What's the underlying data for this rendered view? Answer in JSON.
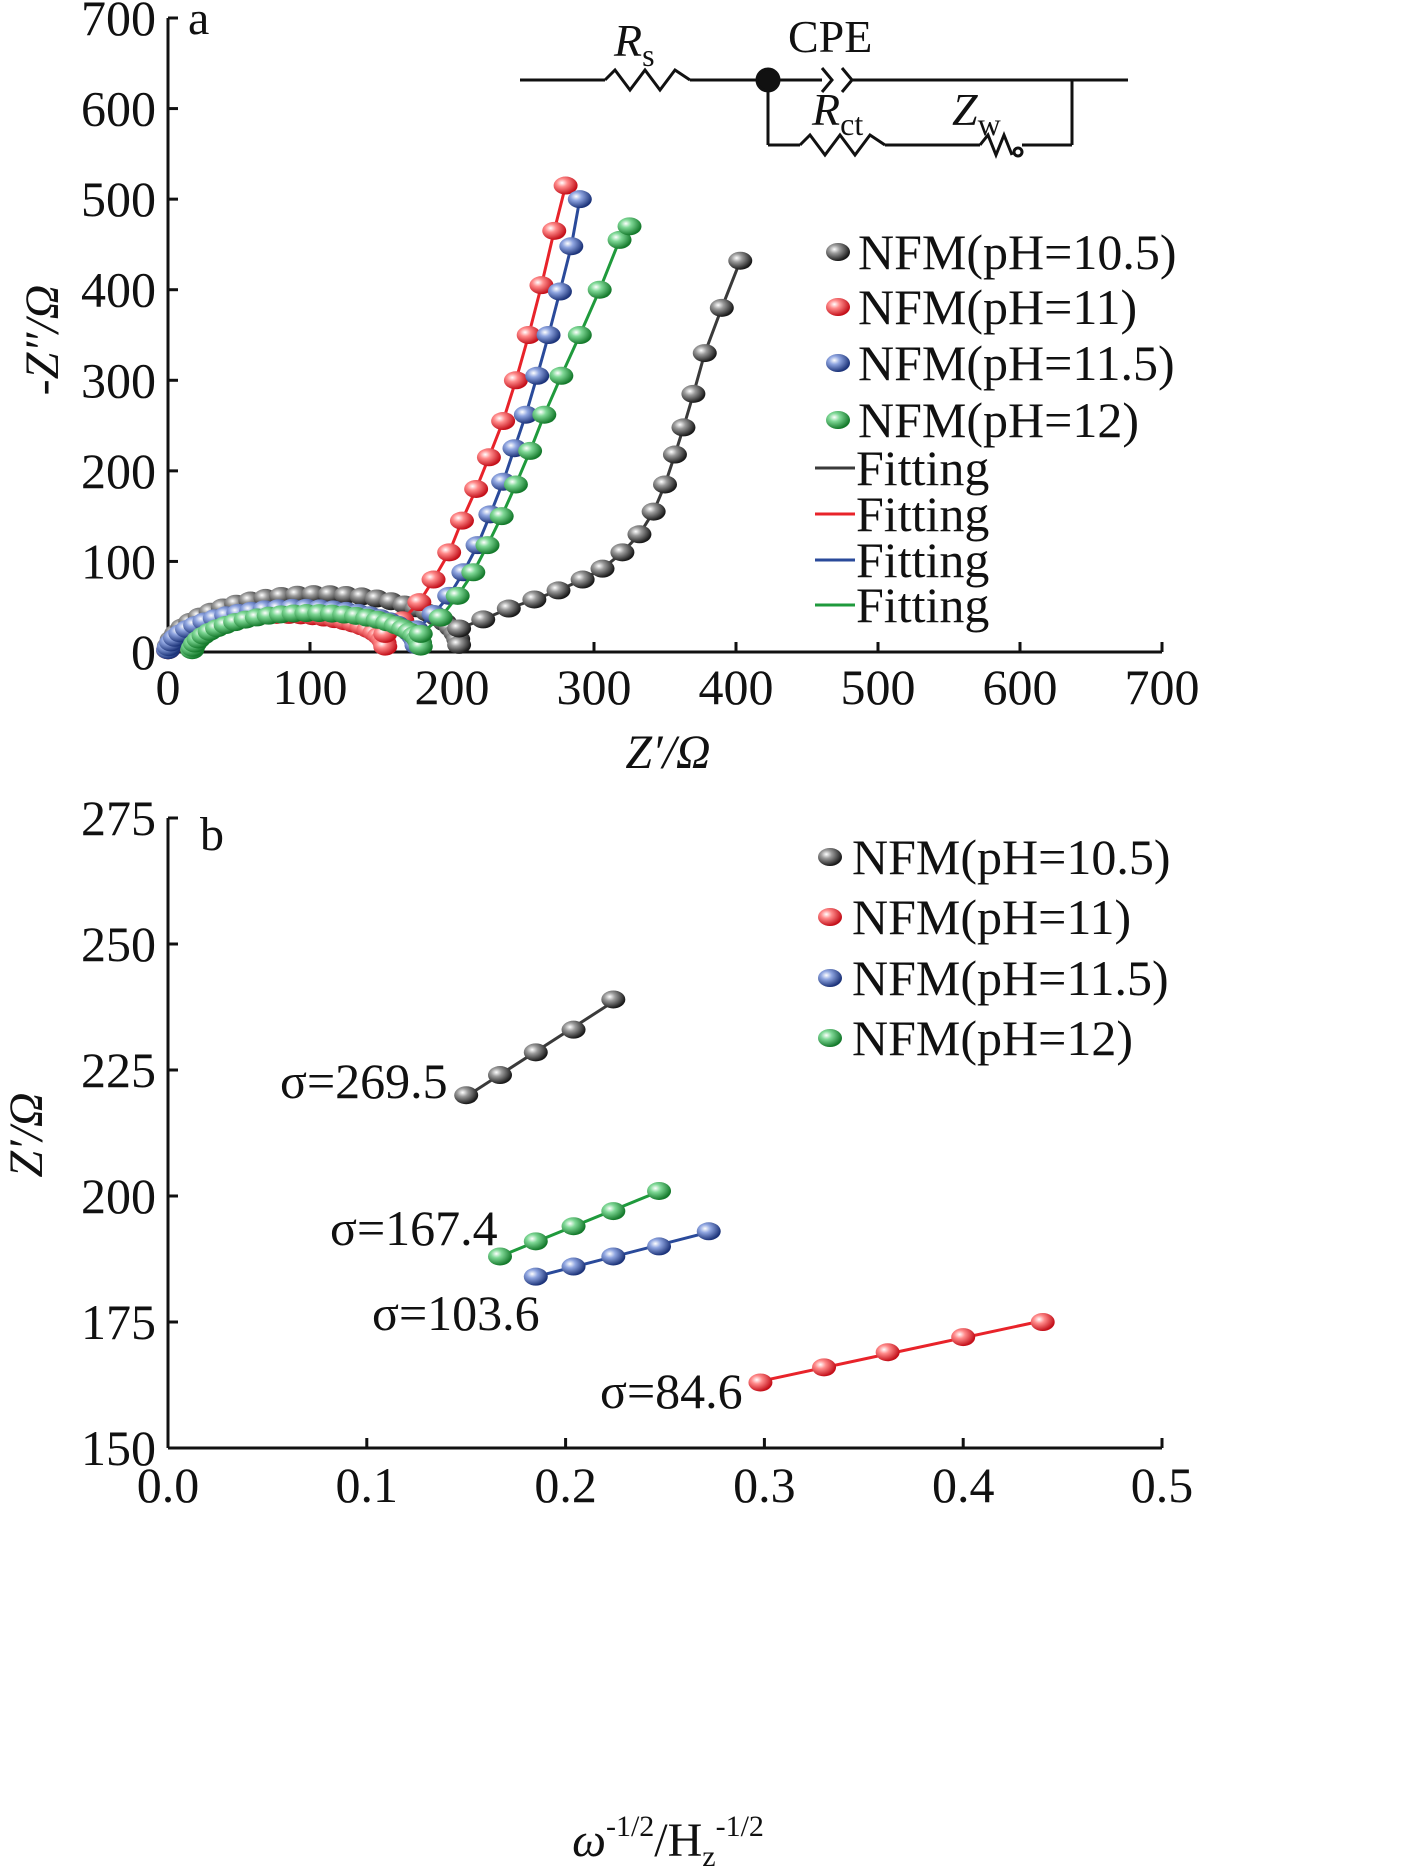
{
  "colors": {
    "pH_10_5": "#3a3a3a",
    "pH_11": "#e8232a",
    "pH_11_5": "#2a4a9a",
    "pH_12": "#1f9a3c"
  },
  "chart_data": [
    {
      "panel": "a",
      "type": "scatter",
      "xlabel": "Z′/Ω",
      "ylabel": "-Z″/Ω",
      "xlim": [
        0,
        700
      ],
      "ylim": [
        0,
        700
      ],
      "xticks": [
        "0",
        "100",
        "200",
        "300",
        "400",
        "500",
        "600",
        "700"
      ],
      "yticks": [
        "0",
        "100",
        "200",
        "300",
        "400",
        "500",
        "600",
        "700"
      ],
      "grid": false,
      "legend_position": "right",
      "legend": [
        "NFM(pH=10.5)",
        "NFM(pH=11)",
        "NFM(pH=11.5)",
        "NFM(pH=12)",
        "Fitting",
        "Fitting",
        "Fitting",
        "Fitting"
      ],
      "circuit": {
        "rs": "R",
        "rs_sub": "s",
        "cpe": "CPE",
        "rct": "R",
        "rct_sub": "ct",
        "zw": "Z",
        "zw_sub": "w"
      },
      "series": [
        {
          "name": "NFM(pH=10.5)",
          "color_key": "pH_10_5",
          "semicircle": {
            "start": 0,
            "end": 205,
            "height": 60
          },
          "tail": [
            [
              205,
              26
            ],
            [
              222,
              36
            ],
            [
              240,
              48
            ],
            [
              258,
              58
            ],
            [
              275,
              68
            ],
            [
              292,
              80
            ],
            [
              306,
              92
            ],
            [
              320,
              110
            ],
            [
              332,
              130
            ],
            [
              342,
              155
            ],
            [
              350,
              185
            ],
            [
              357,
              218
            ],
            [
              363,
              248
            ],
            [
              370,
              285
            ],
            [
              378,
              330
            ],
            [
              390,
              380
            ],
            [
              403,
              432
            ]
          ]
        },
        {
          "name": "NFM(pH=11)",
          "color_key": "pH_11",
          "semicircle": {
            "start": 0,
            "end": 153,
            "height": 38
          },
          "tail": [
            [
              153,
              20
            ],
            [
              165,
              35
            ],
            [
              177,
              55
            ],
            [
              187,
              80
            ],
            [
              198,
              110
            ],
            [
              207,
              145
            ],
            [
              217,
              180
            ],
            [
              226,
              215
            ],
            [
              236,
              255
            ],
            [
              245,
              300
            ],
            [
              254,
              350
            ],
            [
              263,
              405
            ],
            [
              272,
              465
            ],
            [
              280,
              515
            ]
          ]
        },
        {
          "name": "NFM(pH=11.5)",
          "color_key": "pH_11_5",
          "semicircle": {
            "start": 0,
            "end": 175,
            "height": 45
          },
          "tail": [
            [
              175,
              25
            ],
            [
              187,
              42
            ],
            [
              198,
              62
            ],
            [
              208,
              88
            ],
            [
              218,
              118
            ],
            [
              227,
              152
            ],
            [
              236,
              188
            ],
            [
              244,
              225
            ],
            [
              252,
              262
            ],
            [
              260,
              305
            ],
            [
              268,
              350
            ],
            [
              276,
              398
            ],
            [
              284,
              448
            ],
            [
              290,
              500
            ]
          ]
        },
        {
          "name": "NFM(pH=12)",
          "color_key": "pH_12",
          "semicircle": {
            "start": 17,
            "end": 178,
            "height": 40
          },
          "tail": [
            [
              178,
              20
            ],
            [
              192,
              38
            ],
            [
              204,
              62
            ],
            [
              215,
              88
            ],
            [
              225,
              118
            ],
            [
              235,
              150
            ],
            [
              245,
              185
            ],
            [
              255,
              222
            ],
            [
              265,
              262
            ],
            [
              277,
              305
            ],
            [
              290,
              350
            ],
            [
              304,
              400
            ],
            [
              318,
              455
            ],
            [
              325,
              470
            ]
          ]
        }
      ]
    },
    {
      "panel": "b",
      "type": "scatter",
      "xlabel_base": "ω",
      "xlabel_exp": "-1/2",
      "xlabel_sep": "/H",
      "xlabel_sub": "z",
      "xlabel_exp2": "-1/2",
      "ylabel": "Z′/Ω",
      "xlim": [
        0.0,
        0.5
      ],
      "ylim": [
        150,
        275
      ],
      "xticks": [
        "0.0",
        "0.1",
        "0.2",
        "0.3",
        "0.4",
        "0.5"
      ],
      "yticks": [
        "150",
        "175",
        "200",
        "225",
        "250",
        "275"
      ],
      "grid": false,
      "legend_position": "top-right",
      "legend": [
        "NFM(pH=10.5)",
        "NFM(pH=11)",
        "NFM(pH=11.5)",
        "NFM(pH=12)"
      ],
      "series": [
        {
          "name": "NFM(pH=10.5)",
          "color_key": "pH_10_5",
          "x": [
            0.15,
            0.167,
            0.185,
            0.204,
            0.224
          ],
          "y": [
            220,
            224,
            228.5,
            233,
            239
          ],
          "annotation": "σ=269.5"
        },
        {
          "name": "NFM(pH=11)",
          "color_key": "pH_11",
          "x": [
            0.298,
            0.33,
            0.362,
            0.4,
            0.44
          ],
          "y": [
            163,
            166,
            169,
            172,
            175
          ],
          "annotation": "σ=84.6"
        },
        {
          "name": "NFM(pH=11.5)",
          "color_key": "pH_11_5",
          "x": [
            0.185,
            0.204,
            0.224,
            0.247,
            0.272
          ],
          "y": [
            184,
            186,
            188,
            190,
            193
          ],
          "annotation": "σ=103.6"
        },
        {
          "name": "NFM(pH=12)",
          "color_key": "pH_12",
          "x": [
            0.167,
            0.185,
            0.204,
            0.224,
            0.247
          ],
          "y": [
            188,
            191,
            194,
            197,
            201
          ],
          "annotation": "σ=167.4"
        }
      ]
    }
  ]
}
